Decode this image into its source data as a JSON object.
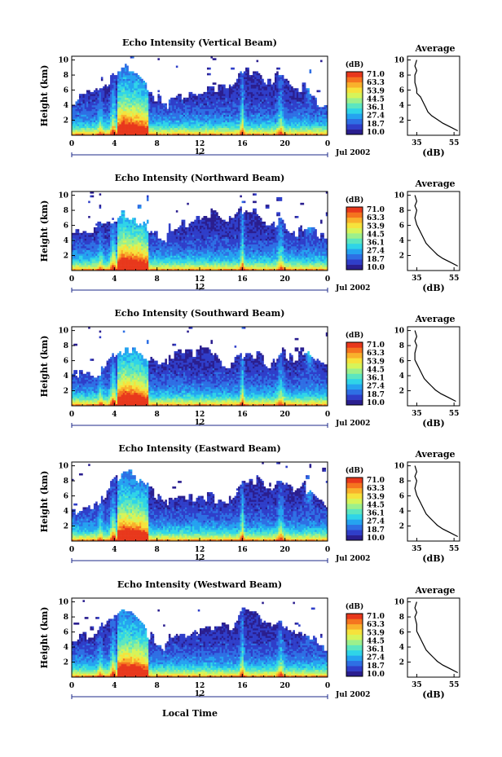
{
  "figure": {
    "xlabel": "Local Time"
  },
  "colorbar": {
    "unit_label": "(dB)",
    "ticks": [
      "71.0",
      "63.3",
      "53.9",
      "44.5",
      "36.1",
      "27.4",
      "18.7",
      "10.0"
    ],
    "colors": [
      "#2a1e8f",
      "#2f3ec9",
      "#2e6fe4",
      "#25a3f0",
      "#2fd4e8",
      "#5ce6c0",
      "#9cf08c",
      "#d6f45a",
      "#f6e23c",
      "#f9b12c",
      "#f5741f",
      "#e8381c"
    ]
  },
  "chart_data": [
    {
      "type": "heatmap",
      "title": "Echo Intensity (Vertical Beam)",
      "ylabel": "Height (km)",
      "xlim": [
        0,
        24
      ],
      "ylim": [
        0,
        10.5
      ],
      "x_ticks": [
        "0",
        "4",
        "8",
        "12",
        "16",
        "20",
        "0"
      ],
      "y_ticks": [
        "2",
        "4",
        "6",
        "8",
        "10"
      ],
      "date_tick": "12",
      "date_label": "Jul 2002",
      "avg_profile": {
        "title": "Average",
        "xlabel": "(dB)",
        "x_ticks": [
          "35",
          "55"
        ],
        "y_ticks": [
          "2",
          "4",
          "6",
          "8",
          "10"
        ],
        "xlim": [
          30,
          58
        ],
        "ylim": [
          0,
          10.5
        ],
        "db": [
          57,
          53,
          49,
          46,
          43,
          41,
          40,
          39,
          38,
          37,
          35,
          35,
          34,
          34,
          35,
          34,
          35
        ],
        "h": [
          0.6,
          1.1,
          1.6,
          2.1,
          2.6,
          3.1,
          3.6,
          4.1,
          4.6,
          5.1,
          5.6,
          6.1,
          7.0,
          8.0,
          8.6,
          9.2,
          10.0
        ]
      }
    },
    {
      "type": "heatmap",
      "title": "Echo Intensity (Northward Beam)",
      "ylabel": "Height (km)",
      "xlim": [
        0,
        24
      ],
      "ylim": [
        0,
        10.5
      ],
      "x_ticks": [
        "0",
        "4",
        "8",
        "12",
        "16",
        "20",
        "0"
      ],
      "y_ticks": [
        "2",
        "4",
        "6",
        "8",
        "10"
      ],
      "date_tick": "12",
      "date_label": "Jul 2002",
      "avg_profile": {
        "title": "Average",
        "xlabel": "(dB)",
        "x_ticks": [
          "35",
          "55"
        ],
        "y_ticks": [
          "2",
          "4",
          "6",
          "8",
          "10"
        ],
        "xlim": [
          30,
          58
        ],
        "ylim": [
          0,
          10.5
        ],
        "db": [
          57,
          53,
          49,
          46,
          44,
          42,
          40,
          39,
          38,
          37,
          36,
          35,
          34,
          35,
          34,
          35,
          34
        ],
        "h": [
          0.6,
          1.1,
          1.6,
          2.1,
          2.6,
          3.1,
          3.6,
          4.1,
          4.6,
          5.1,
          5.6,
          6.1,
          7.0,
          8.0,
          8.6,
          9.2,
          10.0
        ]
      }
    },
    {
      "type": "heatmap",
      "title": "Echo Intensity (Southward Beam)",
      "ylabel": "Height (km)",
      "xlim": [
        0,
        24
      ],
      "ylim": [
        0,
        10.5
      ],
      "x_ticks": [
        "0",
        "4",
        "8",
        "12",
        "16",
        "20",
        "0"
      ],
      "y_ticks": [
        "2",
        "4",
        "6",
        "8",
        "10"
      ],
      "date_tick": "12",
      "date_label": "Jul 2002",
      "avg_profile": {
        "title": "Average",
        "xlabel": "(dB)",
        "x_ticks": [
          "35",
          "55"
        ],
        "y_ticks": [
          "2",
          "4",
          "6",
          "8",
          "10"
        ],
        "xlim": [
          30,
          58
        ],
        "ylim": [
          0,
          10.5
        ],
        "db": [
          56,
          52,
          48,
          45,
          43,
          41,
          39,
          38,
          37,
          36,
          35,
          34,
          34,
          35,
          34,
          35,
          34
        ],
        "h": [
          0.6,
          1.1,
          1.6,
          2.1,
          2.6,
          3.1,
          3.6,
          4.1,
          4.6,
          5.1,
          5.6,
          6.1,
          7.0,
          8.0,
          8.6,
          9.2,
          10.0
        ]
      }
    },
    {
      "type": "heatmap",
      "title": "Echo Intensity (Eastward Beam)",
      "ylabel": "Height (km)",
      "xlim": [
        0,
        24
      ],
      "ylim": [
        0,
        10.5
      ],
      "x_ticks": [
        "0",
        "4",
        "8",
        "12",
        "16",
        "20",
        "0"
      ],
      "y_ticks": [
        "2",
        "4",
        "6",
        "8",
        "10"
      ],
      "date_tick": "12",
      "date_label": "Jul 2002",
      "avg_profile": {
        "title": "Average",
        "xlabel": "(dB)",
        "x_ticks": [
          "35",
          "55"
        ],
        "y_ticks": [
          "2",
          "4",
          "6",
          "8",
          "10"
        ],
        "xlim": [
          30,
          58
        ],
        "ylim": [
          0,
          10.5
        ],
        "db": [
          57,
          53,
          49,
          46,
          44,
          42,
          40,
          39,
          38,
          37,
          36,
          35,
          34,
          35,
          34,
          35,
          34
        ],
        "h": [
          0.6,
          1.1,
          1.6,
          2.1,
          2.6,
          3.1,
          3.6,
          4.1,
          4.6,
          5.1,
          5.6,
          6.1,
          7.0,
          8.0,
          8.6,
          9.2,
          10.0
        ]
      }
    },
    {
      "type": "heatmap",
      "title": "Echo Intensity (Westward Beam)",
      "ylabel": "Height (km)",
      "xlim": [
        0,
        24
      ],
      "ylim": [
        0,
        10.5
      ],
      "x_ticks": [
        "0",
        "4",
        "8",
        "12",
        "16",
        "20",
        "0"
      ],
      "y_ticks": [
        "2",
        "4",
        "6",
        "8",
        "10"
      ],
      "date_tick": "12",
      "date_label": "Jul 2002",
      "avg_profile": {
        "title": "Average",
        "xlabel": "(dB)",
        "x_ticks": [
          "35",
          "55"
        ],
        "y_ticks": [
          "2",
          "4",
          "6",
          "8",
          "10"
        ],
        "xlim": [
          30,
          58
        ],
        "ylim": [
          0,
          10.5
        ],
        "db": [
          57,
          53,
          49,
          46,
          44,
          42,
          40,
          39,
          38,
          37,
          36,
          35,
          35,
          34,
          35,
          34,
          35
        ],
        "h": [
          0.6,
          1.1,
          1.6,
          2.1,
          2.6,
          3.1,
          3.6,
          4.1,
          4.6,
          5.1,
          5.6,
          6.1,
          7.0,
          8.0,
          8.6,
          9.2,
          10.0
        ]
      }
    }
  ]
}
